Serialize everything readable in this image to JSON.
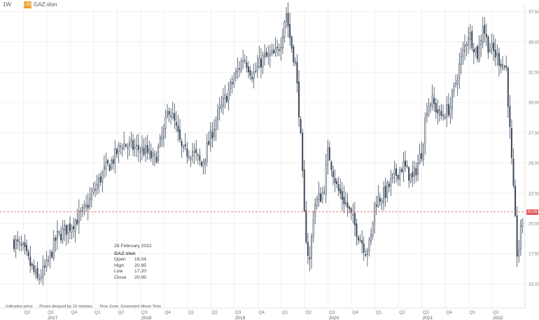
{
  "header": {
    "interval": "1W",
    "symbol": "GAZ:xlon",
    "badge_text": "LSE"
  },
  "tooltip": {
    "date": "28 February 2022",
    "symbol": "GAZ:xlon",
    "rows": [
      {
        "label": "Open",
        "value": "19.04"
      },
      {
        "label": "High",
        "value": "20.95"
      },
      {
        "label": "Low",
        "value": "17.20"
      },
      {
        "label": "Close",
        "value": "20.95"
      }
    ]
  },
  "footer": {
    "indicative": "Indicative price",
    "delay": "Prices delayed by 15 minutes",
    "timezone": "Time Zone: Greenwich Mean Time"
  },
  "price_tag": "20.95",
  "colors": {
    "candle": "#3d4b5c",
    "reference_line": "#e05a5a",
    "grid": "#e6e6e6",
    "price_tag": "#e05a5a"
  },
  "chart_data": {
    "type": "candlestick",
    "interval": "1W",
    "y_axis": {
      "position": "right",
      "ylim": [
        13.0,
        38.0
      ],
      "ticks": [
        "15.00",
        "17.50",
        "20.00",
        "22.50",
        "25.00",
        "27.50",
        "30.00",
        "32.50",
        "35.00",
        "37.50"
      ]
    },
    "x_axis": {
      "quarter_ticks": [
        {
          "label": "Q2",
          "t": 2017.25
        },
        {
          "label": "Q3",
          "t": 2017.5
        },
        {
          "label": "Q4",
          "t": 2017.75
        },
        {
          "label": "Q1",
          "t": 2018.0
        },
        {
          "label": "Q2",
          "t": 2018.25
        },
        {
          "label": "Q3",
          "t": 2018.5
        },
        {
          "label": "Q4",
          "t": 2018.75
        },
        {
          "label": "Q1",
          "t": 2019.0
        },
        {
          "label": "Q2",
          "t": 2019.25
        },
        {
          "label": "Q3",
          "t": 2019.5
        },
        {
          "label": "Q4",
          "t": 2019.75
        },
        {
          "label": "Q1",
          "t": 2020.0
        },
        {
          "label": "Q2",
          "t": 2020.25
        },
        {
          "label": "Q3",
          "t": 2020.5
        },
        {
          "label": "Q4",
          "t": 2020.75
        },
        {
          "label": "Q1",
          "t": 2021.0
        },
        {
          "label": "Q2",
          "t": 2021.25
        },
        {
          "label": "Q3",
          "t": 2021.5
        },
        {
          "label": "Q4",
          "t": 2021.75
        },
        {
          "label": "Q1",
          "t": 2022.0
        },
        {
          "label": "Q2",
          "t": 2022.25
        }
      ],
      "year_labels": [
        {
          "label": "2017",
          "t": 2017.5
        },
        {
          "label": "2018",
          "t": 2018.5
        },
        {
          "label": "2019",
          "t": 2019.5
        },
        {
          "label": "2020",
          "t": 2020.5
        },
        {
          "label": "2021",
          "t": 2021.5
        },
        {
          "label": "2022",
          "t": 2022.25
        }
      ]
    },
    "reference_price": 20.95,
    "anchors": [
      [
        2017.15,
        18.5
      ],
      [
        2017.25,
        17.8
      ],
      [
        2017.4,
        15.3
      ],
      [
        2017.5,
        16.5
      ],
      [
        2017.6,
        18.8
      ],
      [
        2017.75,
        19.8
      ],
      [
        2017.9,
        21.0
      ],
      [
        2018.0,
        22.6
      ],
      [
        2018.1,
        24.2
      ],
      [
        2018.2,
        25.2
      ],
      [
        2018.3,
        26.6
      ],
      [
        2018.45,
        26.2
      ],
      [
        2018.55,
        26.0
      ],
      [
        2018.65,
        25.2
      ],
      [
        2018.75,
        27.6
      ],
      [
        2018.8,
        29.6
      ],
      [
        2018.85,
        28.6
      ],
      [
        2018.95,
        25.8
      ],
      [
        2019.05,
        26.0
      ],
      [
        2019.15,
        24.8
      ],
      [
        2019.25,
        27.2
      ],
      [
        2019.3,
        28.5
      ],
      [
        2019.5,
        32.0
      ],
      [
        2019.6,
        33.8
      ],
      [
        2019.7,
        32.2
      ],
      [
        2019.8,
        33.6
      ],
      [
        2019.95,
        34.0
      ],
      [
        2020.0,
        35.2
      ],
      [
        2020.05,
        37.6
      ],
      [
        2020.1,
        35.0
      ],
      [
        2020.15,
        33.2
      ],
      [
        2020.2,
        28.2
      ],
      [
        2020.25,
        20.0
      ],
      [
        2020.3,
        16.5
      ],
      [
        2020.35,
        21.5
      ],
      [
        2020.45,
        22.6
      ],
      [
        2020.5,
        26.0
      ],
      [
        2020.6,
        22.8
      ],
      [
        2020.7,
        21.5
      ],
      [
        2020.8,
        19.5
      ],
      [
        2020.9,
        17.8
      ],
      [
        2020.95,
        18.3
      ],
      [
        2021.0,
        21.8
      ],
      [
        2021.1,
        22.4
      ],
      [
        2021.2,
        23.8
      ],
      [
        2021.3,
        24.8
      ],
      [
        2021.4,
        23.6
      ],
      [
        2021.5,
        26.0
      ],
      [
        2021.55,
        29.6
      ],
      [
        2021.6,
        30.2
      ],
      [
        2021.7,
        28.8
      ],
      [
        2021.8,
        29.6
      ],
      [
        2021.9,
        33.0
      ],
      [
        2022.0,
        35.8
      ],
      [
        2022.1,
        33.8
      ],
      [
        2022.15,
        36.5
      ],
      [
        2022.2,
        34.8
      ],
      [
        2022.3,
        33.8
      ],
      [
        2022.4,
        32.8
      ],
      [
        2022.45,
        26.0
      ],
      [
        2022.52,
        17.0
      ],
      [
        2022.58,
        20.95
      ]
    ]
  }
}
